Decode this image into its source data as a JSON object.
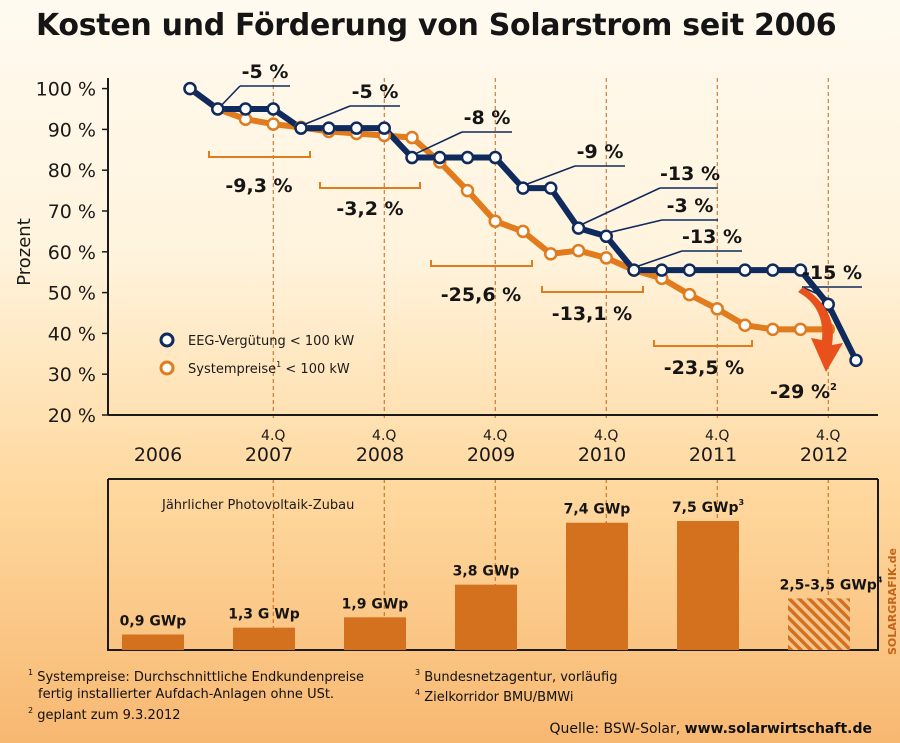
{
  "title": "Kosten und Förderung von Solarstrom seit 2006",
  "ylabel": "Prozent",
  "credit": "SOLARGRAFIK.de",
  "legend": {
    "eeg": "EEG-Vergütung < 100 kW",
    "sys_a": "Systempreise",
    "sys_sup": "1",
    "sys_b": " < 100 kW"
  },
  "colors": {
    "eeg": "#0f2a5c",
    "sys": "#e07b1e",
    "bar": "#d4711f",
    "arrow": "#e8501c"
  },
  "chart_data": [
    {
      "type": "line",
      "title": "Kosten und Förderung von Solarstrom seit 2006",
      "ylabel": "Prozent",
      "ylim": [
        20,
        100
      ],
      "y_ticks": [
        "100 %",
        "90 %",
        "80 %",
        "70 %",
        "60 %",
        "50 %",
        "40 %",
        "30 %",
        "20 %"
      ],
      "year_labels": [
        "2006",
        "2007",
        "2008",
        "2009",
        "2010",
        "2011",
        "2012"
      ],
      "quarter_marker": "4.Q",
      "series": [
        {
          "name": "EEG-Vergütung < 100 kW",
          "x": [
            2006.0,
            2006.25,
            2006.5,
            2006.75,
            2007.0,
            2007.25,
            2007.5,
            2007.75,
            2008.0,
            2008.25,
            2008.5,
            2008.75,
            2009.0,
            2009.25,
            2009.5,
            2009.75,
            2010.0,
            2010.25,
            2010.5,
            2011.0,
            2011.25,
            2011.5,
            2011.75,
            2012.0
          ],
          "values": [
            100,
            95,
            95,
            95,
            90.3,
            90.3,
            90.3,
            90.3,
            83.1,
            83.1,
            83.1,
            83.1,
            75.6,
            75.6,
            65.8,
            63.8,
            55.5,
            55.5,
            55.5,
            55.5,
            55.5,
            55.5,
            47.1,
            33.4
          ]
        },
        {
          "name": "Systempreise < 100 kW",
          "x": [
            2006.0,
            2006.25,
            2006.5,
            2006.75,
            2007.0,
            2007.25,
            2007.5,
            2007.75,
            2008.0,
            2008.25,
            2008.5,
            2008.75,
            2009.0,
            2009.25,
            2009.5,
            2009.75,
            2010.0,
            2010.25,
            2010.5,
            2010.75,
            2011.0,
            2011.25,
            2011.5,
            2011.75
          ],
          "values": [
            100,
            95,
            92.5,
            91.3,
            90.5,
            89.5,
            89,
            88.5,
            88,
            82,
            75,
            67.5,
            65,
            59.5,
            60.3,
            58.5,
            55.5,
            53.5,
            49.5,
            46,
            42,
            41,
            41,
            41
          ]
        }
      ],
      "step_labels": [
        "-5 %",
        "-5 %",
        "-8 %",
        "-9 %",
        "-13 %",
        "-3 %",
        "-13 %",
        "-15 %",
        "-29 %"
      ],
      "step_label_sup": "2",
      "year_change_labels": [
        "-9,3 %",
        "-3,2 %",
        "-25,6 %",
        "-13,1 %",
        "-23,5 %"
      ]
    },
    {
      "type": "bar",
      "title": "Jährlicher Photovoltaik-Zubau",
      "categories": [
        "2006",
        "2007",
        "2008",
        "2009",
        "2010",
        "2011",
        "2012"
      ],
      "values": [
        0.9,
        1.3,
        1.9,
        3.8,
        7.4,
        7.5,
        3.0
      ],
      "range_2012": [
        2.5,
        3.5
      ],
      "unit": "GWp",
      "bar_labels": [
        "0,9 GWp",
        "1,3 G Wp",
        "1,9 GWp",
        "3,8 GWp",
        "7,4 GWp",
        "7,5 GWp",
        "2,5-3,5 GWp"
      ],
      "bar_label_sups": [
        "",
        "",
        "",
        "",
        "",
        "3",
        "4"
      ]
    }
  ],
  "footnotes": {
    "f1_num": "1",
    "f1_line1": "Systempreise: Durchschnittliche Endkundenpreise",
    "f1_line2": "fertig installierter Aufdach-Anlagen ohne USt.",
    "f2_num": "2",
    "f2_text": "geplant zum 9.3.2012",
    "f3_num": "3",
    "f3_text": "Bundesnetzagentur, vorläufig",
    "f4_num": "4",
    "f4_text": "Zielkorridor BMU/BMWi"
  },
  "source": {
    "prefix": "Quelle: BSW-Solar, ",
    "url": "www.solarwirtschaft.de"
  }
}
